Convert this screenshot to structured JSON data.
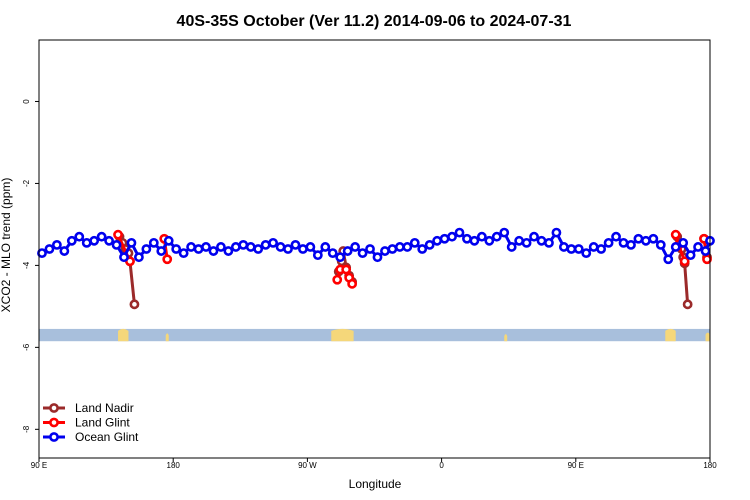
{
  "chart_data": {
    "type": "line",
    "title": "40S-35S October (Ver 11.2)   2014-09-06 to 2024-07-31",
    "xlabel": "Longitude",
    "ylabel": "XCO2 - MLO trend (ppm)",
    "x_ticks": [
      {
        "value": 90,
        "label": "90 E"
      },
      {
        "value": 180,
        "label": "180"
      },
      {
        "value": 270,
        "label": "90 W"
      },
      {
        "value": 360,
        "label": "0"
      },
      {
        "value": 450,
        "label": "90 E"
      },
      {
        "value": 540,
        "label": "180"
      }
    ],
    "y_ticks": [
      {
        "value": 0,
        "label": "0"
      },
      {
        "value": -2,
        "label": "-2"
      },
      {
        "value": -4,
        "label": "-4"
      },
      {
        "value": -6,
        "label": "-6"
      },
      {
        "value": -8,
        "label": "-8"
      }
    ],
    "xlim": [
      90,
      540
    ],
    "ylim": [
      -8.7,
      1.5
    ],
    "grid": false,
    "legend_position": "bottom-left",
    "map_strip": {
      "ocean_color": "#a8bfdc",
      "land_color": "#f5d77a",
      "y_top": -5.55,
      "y_bottom": -5.85
    },
    "land_masses": [
      {
        "x": [
          143,
          150
        ],
        "w": [
          1.0,
          1.0
        ]
      },
      {
        "x": [
          175,
          177
        ],
        "w": [
          0.4,
          0.4
        ]
      },
      {
        "x": [
          286,
          301
        ],
        "w": [
          1.0,
          1.0
        ]
      },
      {
        "x": [
          402,
          404
        ],
        "w": [
          0.3,
          0.3
        ]
      },
      {
        "x": [
          510,
          517
        ],
        "w": [
          1.0,
          1.0
        ]
      },
      {
        "x": [
          537,
          540
        ],
        "w": [
          0.5,
          0.5
        ]
      }
    ],
    "series": [
      {
        "name": "Land Nadir",
        "color": "#9b2a2a",
        "segments": [
          {
            "x": [
              144,
              146,
              148,
              150,
              151,
              154
            ],
            "y": [
              -3.3,
              -3.45,
              -3.6,
              -3.7,
              -3.9,
              -4.95
            ]
          },
          {
            "x": [
              291,
              293,
              294,
              296,
              298,
              300
            ],
            "y": [
              -4.15,
              -3.9,
              -3.65,
              -4.05,
              -4.25,
              -4.4
            ]
          },
          {
            "x": [
              518,
              520,
              521,
              522,
              523,
              525
            ],
            "y": [
              -3.3,
              -3.45,
              -3.6,
              -3.8,
              -3.95,
              -4.95
            ]
          },
          {
            "x": [
              536,
              538
            ],
            "y": [
              -3.35,
              -3.8
            ]
          }
        ]
      },
      {
        "name": "Land Glint",
        "color": "#ff0000",
        "segments": [
          {
            "x": [
              143,
              151
            ],
            "y": [
              -3.25,
              -3.9
            ]
          },
          {
            "x": [
              174,
              176
            ],
            "y": [
              -3.35,
              -3.85
            ]
          },
          {
            "x": [
              290,
              292,
              296,
              298,
              300
            ],
            "y": [
              -4.35,
              -4.1,
              -4.1,
              -4.3,
              -4.45
            ]
          },
          {
            "x": [
              517,
              519,
              523
            ],
            "y": [
              -3.25,
              -3.5,
              -3.9
            ]
          },
          {
            "x": [
              536,
              538
            ],
            "y": [
              -3.35,
              -3.85
            ]
          }
        ]
      },
      {
        "name": "Ocean Glint",
        "color": "#0000ee",
        "segments": [
          {
            "x": [
              92,
              97,
              102,
              107,
              112,
              117,
              122,
              127,
              132,
              137,
              142,
              147,
              152,
              157,
              162,
              167,
              172,
              177,
              182,
              187,
              192,
              197,
              202,
              207,
              212,
              217,
              222,
              227,
              232,
              237,
              242,
              247,
              252,
              257,
              262,
              267,
              272,
              277,
              282,
              287,
              292,
              297,
              302,
              307,
              312,
              317,
              322,
              327,
              332,
              337,
              342,
              347,
              352,
              357,
              362,
              367,
              372,
              377,
              382,
              387,
              392,
              397,
              402,
              407,
              412,
              417,
              422,
              427,
              432,
              437,
              442,
              447,
              452,
              457,
              462,
              467,
              472,
              477,
              482,
              487,
              492,
              497,
              502,
              507,
              512,
              517,
              522,
              527,
              532,
              537,
              540
            ],
            "y": [
              -3.7,
              -3.6,
              -3.5,
              -3.65,
              -3.4,
              -3.3,
              -3.45,
              -3.4,
              -3.3,
              -3.4,
              -3.5,
              -3.8,
              -3.45,
              -3.8,
              -3.6,
              -3.45,
              -3.65,
              -3.4,
              -3.6,
              -3.7,
              -3.55,
              -3.6,
              -3.55,
              -3.65,
              -3.55,
              -3.65,
              -3.55,
              -3.5,
              -3.55,
              -3.6,
              -3.5,
              -3.45,
              -3.55,
              -3.6,
              -3.5,
              -3.6,
              -3.55,
              -3.75,
              -3.55,
              -3.7,
              -3.8,
              -3.65,
              -3.55,
              -3.7,
              -3.6,
              -3.8,
              -3.65,
              -3.6,
              -3.55,
              -3.55,
              -3.45,
              -3.6,
              -3.5,
              -3.4,
              -3.35,
              -3.3,
              -3.2,
              -3.35,
              -3.4,
              -3.3,
              -3.4,
              -3.3,
              -3.2,
              -3.55,
              -3.4,
              -3.45,
              -3.3,
              -3.4,
              -3.45,
              -3.2,
              -3.55,
              -3.6,
              -3.6,
              -3.7,
              -3.55,
              -3.6,
              -3.45,
              -3.3,
              -3.45,
              -3.5,
              -3.35,
              -3.4,
              -3.35,
              -3.5,
              -3.85,
              -3.55,
              -3.45,
              -3.75,
              -3.55,
              -3.65,
              -3.4
            ]
          }
        ]
      }
    ]
  }
}
